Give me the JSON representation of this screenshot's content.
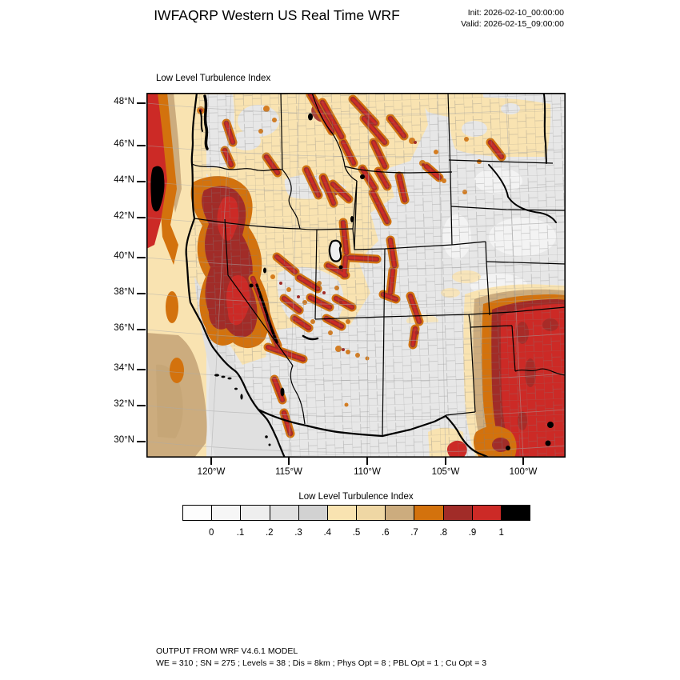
{
  "header": {
    "title": "IWFAQRP Western US Real Time WRF",
    "init": "Init: 2026-02-10_00:00:00",
    "valid": "Valid: 2026-02-15_09:00:00"
  },
  "map": {
    "subtitle": "Low Level Turbulence Index",
    "lat_ticks": [
      "48°N",
      "46°N",
      "44°N",
      "42°N",
      "40°N",
      "38°N",
      "36°N",
      "34°N",
      "32°N",
      "30°N"
    ],
    "lon_ticks": [
      "120°W",
      "115°W",
      "110°W",
      "105°W",
      "100°W"
    ]
  },
  "colorbar": {
    "title": "Low Level Turbulence Index",
    "tick_labels": [
      "0",
      ".1",
      ".2",
      ".3",
      ".4",
      ".5",
      ".6",
      ".7",
      ".8",
      ".9",
      "1"
    ],
    "colors": [
      "#FDFDFD",
      "#F6F6F6",
      "#EEEEEE",
      "#E0E0E0",
      "#D2D2D2",
      "#F9E3B1",
      "#EFD7A4",
      "#CCAC7E",
      "#D3720D",
      "#A12C28",
      "#CC2A26",
      "#000000"
    ]
  },
  "footer": {
    "line1": "OUTPUT FROM WRF V4.6.1 MODEL",
    "line2": "WE = 310 ; SN = 275 ; Levels = 38 ; Dis = 8km ; Phys Opt = 8 ; PBL Opt = 1 ; Cu Opt = 3"
  },
  "chart_data": {
    "type": "heatmap",
    "title": "Low Level Turbulence Index",
    "field": "low_level_turbulence_index",
    "levels": [
      0,
      0.1,
      0.2,
      0.3,
      0.4,
      0.5,
      0.6,
      0.7,
      0.8,
      0.9,
      1
    ],
    "level_labels": [
      "0",
      ".1",
      ".2",
      ".3",
      ".4",
      ".5",
      ".6",
      ".7",
      ".8",
      ".9",
      "1"
    ],
    "palette": [
      "#FDFDFD",
      "#F6F6F6",
      "#EEEEEE",
      "#E0E0E0",
      "#D2D2D2",
      "#F9E3B1",
      "#EFD7A4",
      "#CCAC7E",
      "#D3720D",
      "#A12C28",
      "#CC2A26",
      "#000000"
    ],
    "x_ticks": [
      "120°W",
      "115°W",
      "110°W",
      "105°W",
      "100°W"
    ],
    "y_ticks": [
      "48°N",
      "46°N",
      "44°N",
      "42°N",
      "40°N",
      "38°N",
      "36°N",
      "34°N",
      "32°N",
      "30°N"
    ],
    "legend_position": "bottom",
    "grid": false,
    "high_value_regions": [
      "Pacific offshore strip north of 42N: 0.8-1.0 with small >1 (black) cell",
      "Oregon Cascades through northern California / Sierra Nevada: 0.8-1.0, >1 along Sierra crest",
      "Idaho batholith and western Montana ridges: 0.8-1.0 streaks",
      "Wind River / Bighorn / Wasatch / Uinta / Colorado Front Range: 0.8-1.0 streaks",
      "Central Texas - Oklahoma broad maximum: 0.9-1.0 ringed by 0.5-0.9 bands, local >1 spots"
    ],
    "low_value_regions": [
      "Great Plains (ND/SD/NE/KS): ~0-0.3",
      "Arizona / New Mexico interior: ~0-0.3",
      "Coastal Pacific south of 42N: ~0.2-0.6"
    ]
  }
}
